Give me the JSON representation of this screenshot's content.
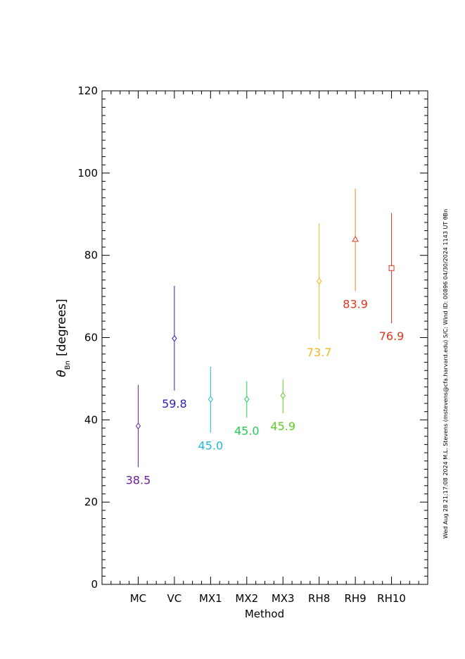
{
  "chart_data": {
    "type": "scatter",
    "title": "",
    "xlabel": "Method",
    "ylabel": {
      "symbol": "θ",
      "subscript": "Bn",
      "unit": "[degrees]"
    },
    "ylim": [
      0,
      120
    ],
    "y_ticks": [
      0,
      20,
      40,
      60,
      80,
      100,
      120
    ],
    "y_tick_labels": [
      "0",
      "20",
      "40",
      "60",
      "80",
      "100",
      "120"
    ],
    "y_minor_step": 2,
    "categories": [
      "MC",
      "VC",
      "MX1",
      "MX2",
      "MX3",
      "RH8",
      "RH9",
      "RH10"
    ],
    "points": [
      {
        "method": "MC",
        "value": 38.5,
        "low": 28.5,
        "high": 48.5,
        "label": "38.5",
        "color": "#6a1e96",
        "marker": "diamond"
      },
      {
        "method": "VC",
        "value": 59.8,
        "low": 47.1,
        "high": 72.6,
        "label": "59.8",
        "color": "#2b1fc4",
        "marker": "diamond"
      },
      {
        "method": "MX1",
        "value": 45.0,
        "low": 36.9,
        "high": 52.9,
        "label": "45.0",
        "color": "#1fb9d6",
        "marker": "diamond"
      },
      {
        "method": "MX2",
        "value": 45.0,
        "low": 40.5,
        "high": 49.4,
        "label": "45.0",
        "color": "#1fcc55",
        "marker": "diamond"
      },
      {
        "method": "MX3",
        "value": 45.9,
        "low": 41.6,
        "high": 49.9,
        "label": "45.9",
        "color": "#5fcc1f",
        "marker": "diamond"
      },
      {
        "method": "RH8",
        "value": 73.7,
        "low": 59.6,
        "high": 87.8,
        "label": "73.7",
        "color": "#f0b71f",
        "marker": "diamond"
      },
      {
        "method": "RH9",
        "value": 83.9,
        "low": 71.3,
        "high": 96.2,
        "label": "83.9",
        "color": "#e0341f",
        "marker": "triangle",
        "bar_color": "#e0891f"
      },
      {
        "method": "RH10",
        "value": 76.9,
        "low": 63.5,
        "high": 90.3,
        "label": "76.9",
        "color": "#e0341f",
        "marker": "square"
      }
    ],
    "grid": false,
    "legend": "none"
  },
  "footer_note": "Wed Aug 28 21:17:08 2024  M.L. Stevens (mstevens@cfa.harvard.edu)  S/C: Wind ID: 00896 04/30/2024  1143 UT θBn"
}
